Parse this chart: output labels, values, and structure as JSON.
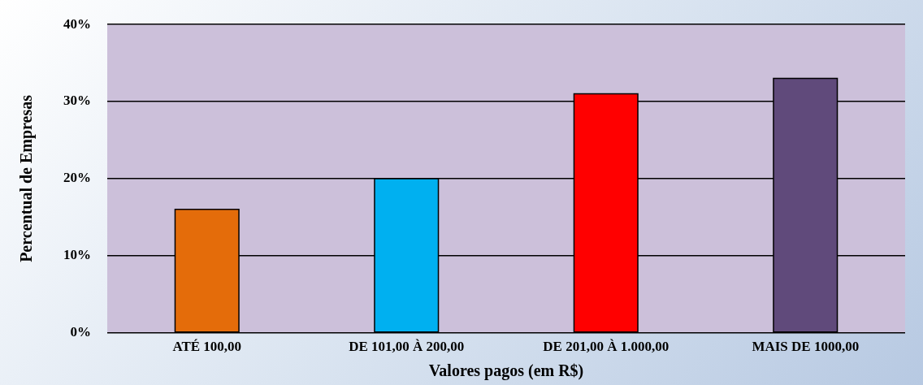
{
  "chart_data": {
    "type": "bar",
    "xlabel": "Valores pagos (em R$)",
    "ylabel": "Percentual de Empresas",
    "categories": [
      "ATÉ 100,00",
      "DE 101,00 À 200,00",
      "DE 201,00 À 1.000,00",
      "MAIS DE 1000,00"
    ],
    "values": [
      16,
      20,
      31,
      33
    ],
    "colors": [
      "#e46c0a",
      "#00b0f0",
      "#ff0000",
      "#604a7b"
    ],
    "ylim": [
      0,
      40
    ],
    "yticks": [
      {
        "value": 0,
        "label": "0%"
      },
      {
        "value": 10,
        "label": "10%"
      },
      {
        "value": 20,
        "label": "20%"
      },
      {
        "value": 30,
        "label": "30%"
      },
      {
        "value": 40,
        "label": "40%"
      }
    ],
    "grid": "y",
    "legend": false
  }
}
